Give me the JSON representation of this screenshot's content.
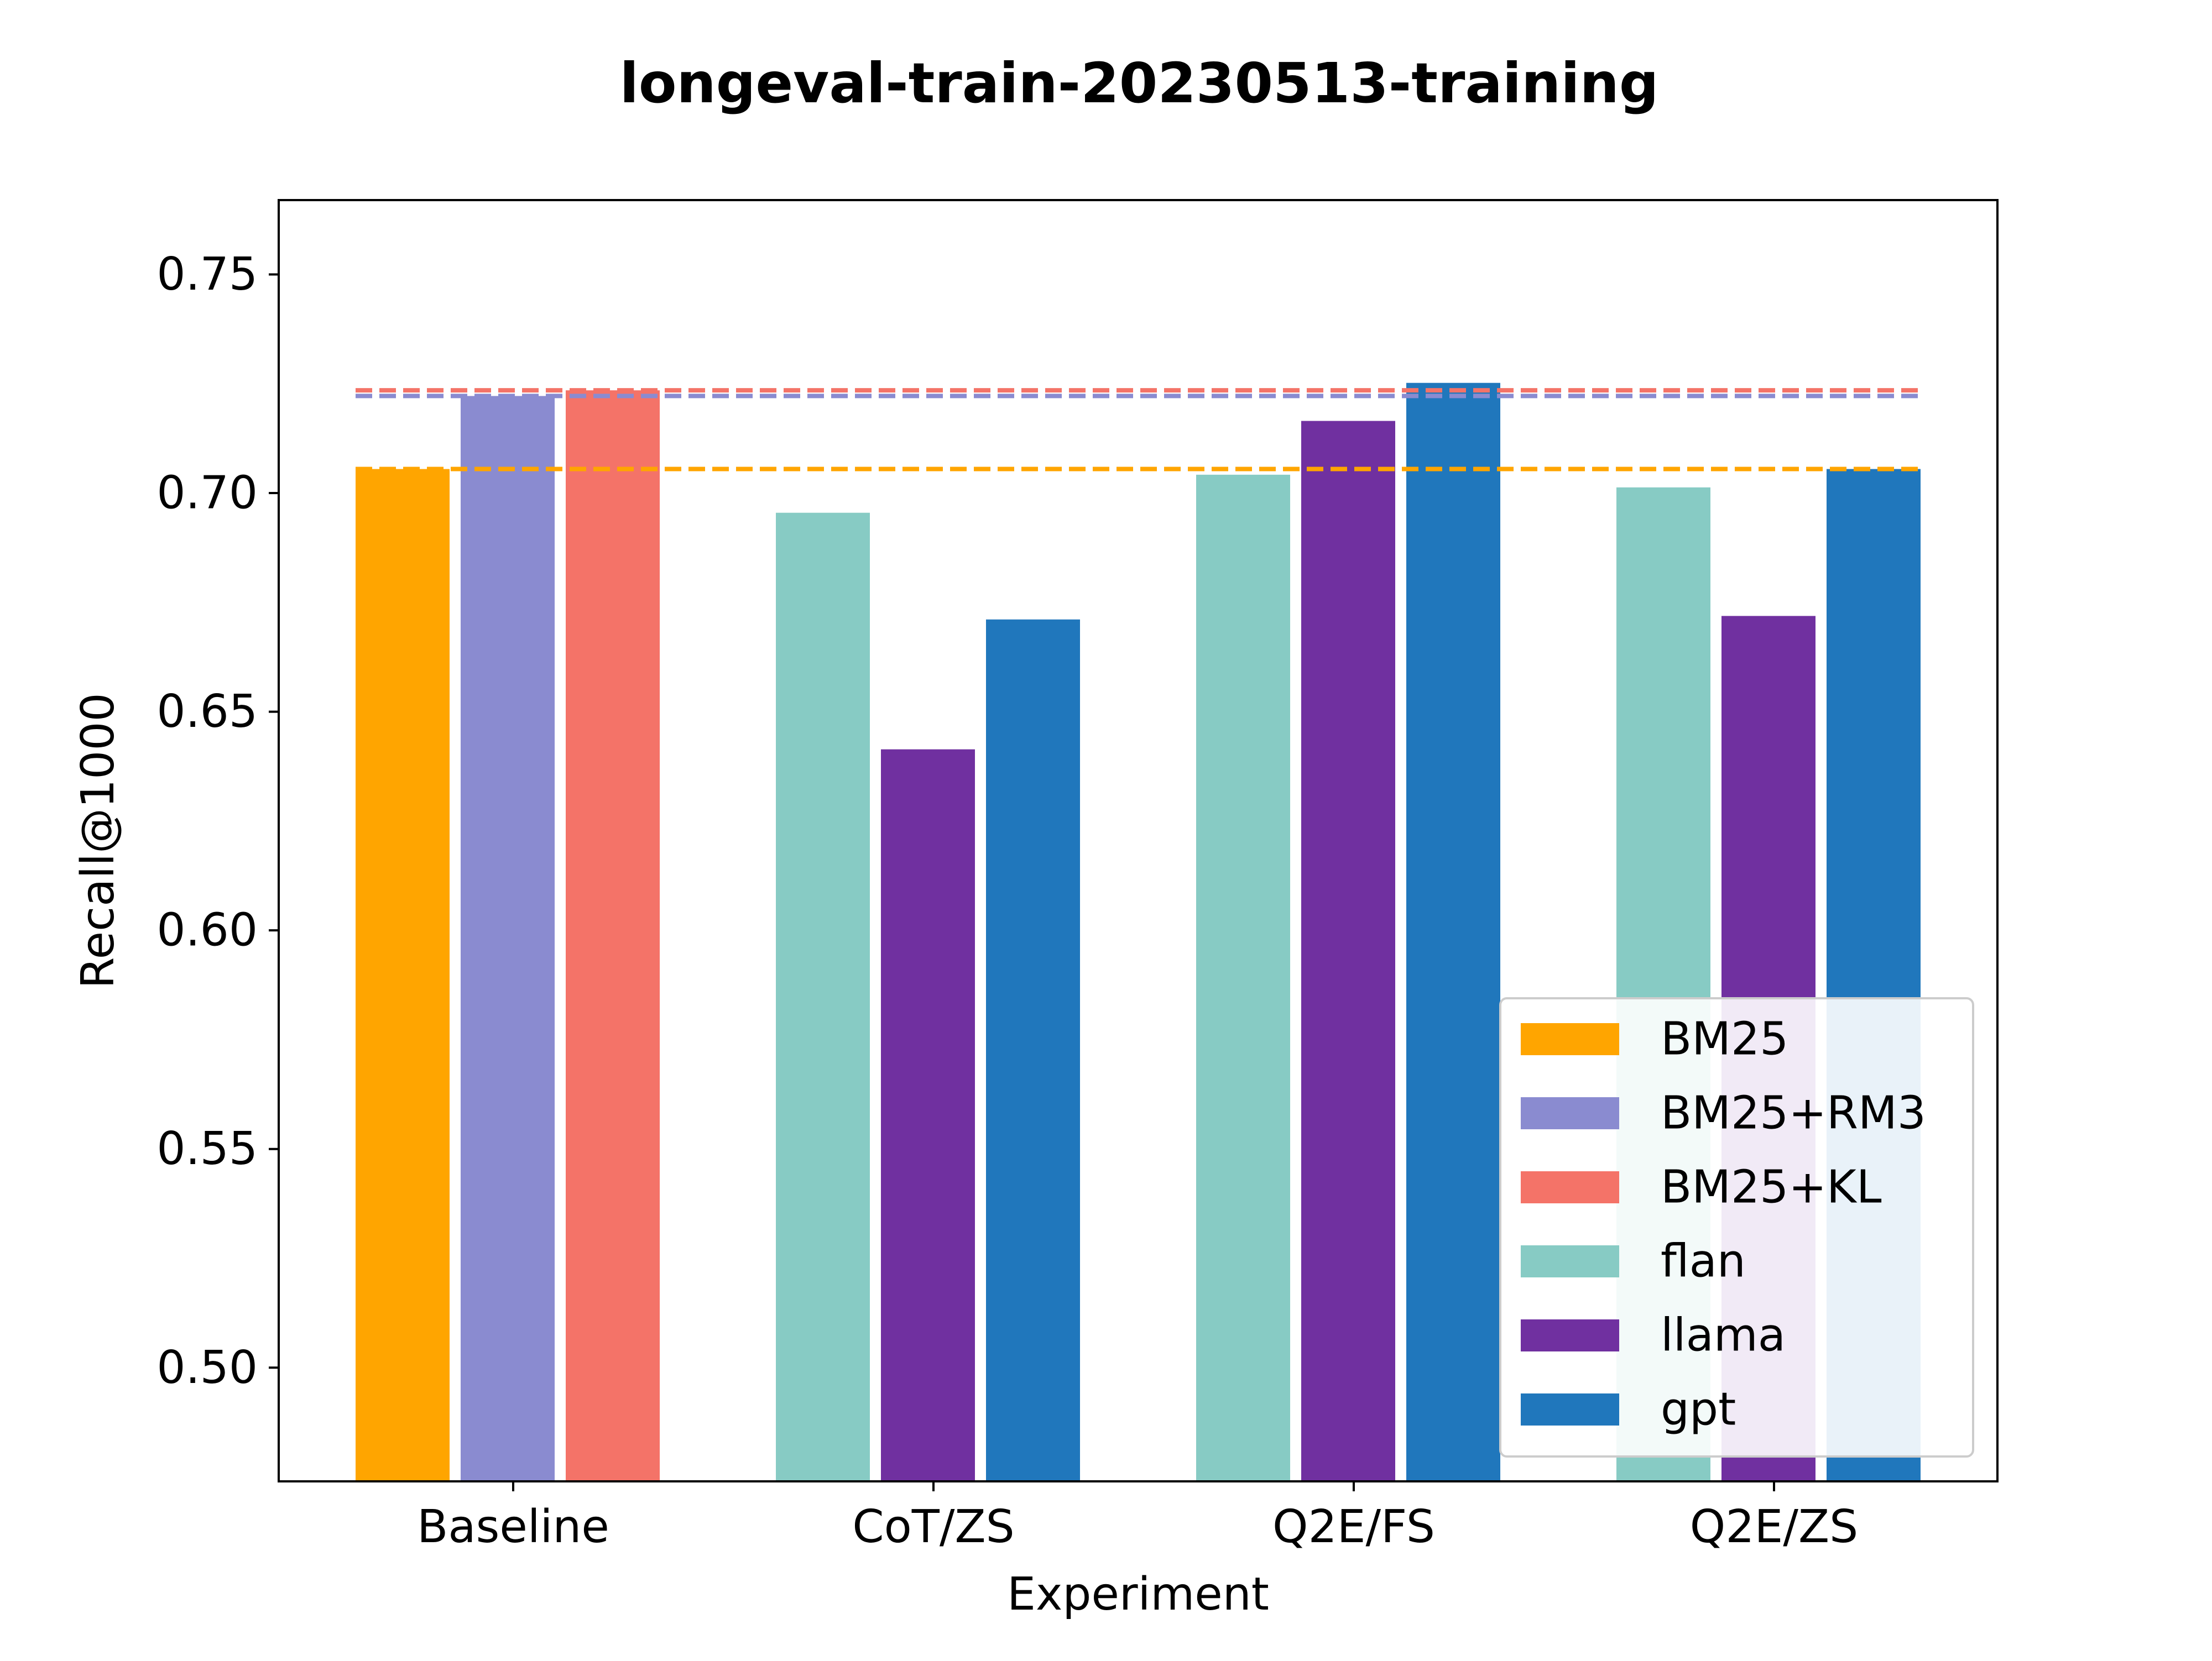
{
  "chart_data": {
    "type": "bar",
    "title": "longeval-train-20230513-training",
    "xlabel": "Experiment",
    "ylabel": "Recall@1000",
    "ylim": [
      0.474,
      0.767
    ],
    "yticks": [
      "0.50",
      "0.55",
      "0.60",
      "0.65",
      "0.70",
      "0.75"
    ],
    "categories": [
      "Baseline",
      "CoT/ZS",
      "Q2E/FS",
      "Q2E/ZS"
    ],
    "series": [
      {
        "name": "BM25",
        "color": "#ffa500",
        "values": [
          0.7055,
          null,
          null,
          null
        ]
      },
      {
        "name": "BM25+RM3",
        "color": "#8a8bd0",
        "values": [
          0.7222,
          null,
          null,
          null
        ]
      },
      {
        "name": "BM25+KL",
        "color": "#f47368",
        "values": [
          0.7235,
          null,
          null,
          null
        ]
      },
      {
        "name": "flan",
        "color": "#87cbc4",
        "values": [
          null,
          0.6955,
          0.7042,
          0.7013
        ]
      },
      {
        "name": "llama",
        "color": "#7030a0",
        "values": [
          null,
          0.6414,
          0.7165,
          0.6719
        ]
      },
      {
        "name": "gpt",
        "color": "#2077bc",
        "values": [
          null,
          0.6711,
          0.7252,
          0.7055
        ]
      }
    ],
    "reference_lines": [
      {
        "series": "BM25",
        "value": 0.7055,
        "style": "dashed"
      },
      {
        "series": "BM25+RM3",
        "value": 0.7222,
        "style": "dashed"
      },
      {
        "series": "BM25+KL",
        "value": 0.7235,
        "style": "dashed"
      }
    ],
    "legend_position": "lower-right",
    "grid": false
  }
}
